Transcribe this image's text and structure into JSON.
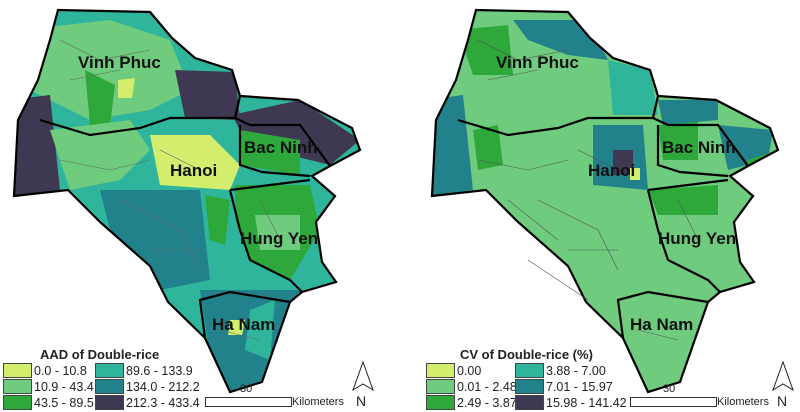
{
  "maps": [
    {
      "legend_title": "AAD of Double-rice",
      "classes": [
        {
          "label": "0.0 - 10.8",
          "color": "#d2ee6c"
        },
        {
          "label": "10.9 - 43.4",
          "color": "#6fcc7e"
        },
        {
          "label": "43.5 - 89.5",
          "color": "#2ea83a"
        },
        {
          "label": "89.6 - 133.9",
          "color": "#2fb59b"
        },
        {
          "label": "134.0 - 212.2",
          "color": "#21828c"
        },
        {
          "label": "212.3 - 433.4",
          "color": "#3e3853"
        }
      ],
      "regions": [
        "Vinh Phuc",
        "Bac Ninh",
        "Hanoi",
        "Hung Yen",
        "Ha Nam"
      ],
      "scale_value": "30",
      "scale_unit": "Kilometers",
      "north": "N"
    },
    {
      "legend_title": "CV of Double-rice (%)",
      "classes": [
        {
          "label": "0.00",
          "color": "#d2ee6c"
        },
        {
          "label": "0.01 - 2.48",
          "color": "#6fcc7e"
        },
        {
          "label": "2.49 - 3.87",
          "color": "#2ea83a"
        },
        {
          "label": "3.88 - 7.00",
          "color": "#2fb59b"
        },
        {
          "label": "7.01 - 15.97",
          "color": "#21828c"
        },
        {
          "label": "15.98 - 141.42",
          "color": "#3e3853"
        }
      ],
      "regions": [
        "Vinh Phuc",
        "Bac Ninh",
        "Hanoi",
        "Hung Yen",
        "Ha Nam"
      ],
      "scale_value": "30",
      "scale_unit": "Kilometers",
      "north": "N"
    }
  ]
}
